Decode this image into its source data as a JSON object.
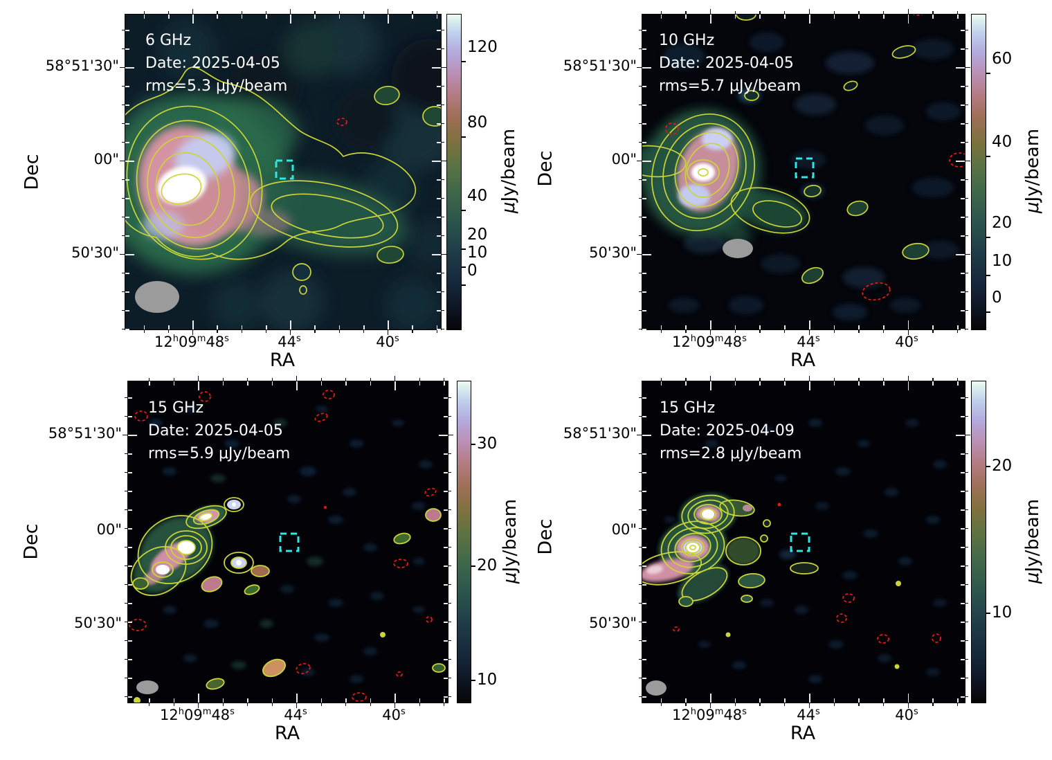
{
  "axes": {
    "x_label": "RA",
    "y_label": "Dec",
    "x_ticks": [
      "12h09m48s",
      "44s",
      "40s"
    ],
    "y_ticks": [
      "58°51'30\"",
      "00\"",
      "50'30\""
    ]
  },
  "colorbar": {
    "mu": "μ",
    "unit": "Jy/beam"
  },
  "panels": [
    {
      "name": "6 GHz 2025-04-05",
      "frequency": "6 GHz",
      "date_line": "Date: 2025-04-05",
      "rms_line": "rms=5.3 μJy/beam",
      "colorbar_ticks": [
        "120",
        "80",
        "40",
        "20",
        "10",
        "0"
      ]
    },
    {
      "name": "10 GHz 2025-04-05",
      "frequency": "10 GHz",
      "date_line": "Date: 2025-04-05",
      "rms_line": "rms=5.7 μJy/beam",
      "colorbar_ticks": [
        "60",
        "40",
        "20",
        "10",
        "0"
      ]
    },
    {
      "name": "15 GHz 2025-04-05",
      "frequency": "15 GHz",
      "date_line": "Date: 2025-04-05",
      "rms_line": "rms=5.9 μJy/beam",
      "colorbar_ticks": [
        "30",
        "20",
        "10"
      ]
    },
    {
      "name": "15 GHz 2025-04-09",
      "frequency": "15 GHz",
      "date_line": "Date: 2025-04-09",
      "rms_line": "rms=2.8 μJy/beam",
      "colorbar_ticks": [
        "20",
        "10"
      ]
    }
  ],
  "chart_data": {
    "type": "heatmap",
    "layout": "2x2 grid of radio continuum sky maps, each with its own vertical colorbar",
    "shared_axes": {
      "xlabel": "RA",
      "ylabel": "Dec",
      "x_tick_labels": [
        "12h09m48s",
        "44s",
        "40s"
      ],
      "y_tick_labels": [
        "58°51'30\"",
        "00\"",
        "50'30\""
      ],
      "x_range_approx": "RA 12h09m50.7s (left) to 12h09m37.9s (right)",
      "y_range_approx": "Dec +58°50'06\" (bottom) to +58°51'47\" (top)"
    },
    "colormap": "cubehelix-like: black → dark blue/teal → green → olive → rose/pink → lavender → white",
    "contours": {
      "positive_contour_color": "yellow-olive solid",
      "negative_contour_color": "red dashed",
      "target_marker": "cyan dashed square near map center (~RA 12h09m44.3s, Dec +58°50'57\")",
      "beam": "grey filled ellipse in lower-left corner of each panel"
    },
    "panels": [
      {
        "position": "top-left",
        "frequency": "6 GHz",
        "observation_date": "2025-04-05",
        "rms_uJy_per_beam": 5.3,
        "colorbar_unit": "μJy/beam",
        "colorbar_tick_values": [
          120,
          80,
          40,
          20,
          10,
          0
        ],
        "colorbar_scale": "nonlinear (asinh-like)",
        "peak_approx_uJy_per_beam": 140,
        "morphology": "bright extended source on E side: white peak, pink halo, green envelope with ~6 nested yellow contours; low-brightness tail extends W; small isolated positive contours NE, E edge and S; one tiny red negative contour; cyan box NW of peak; large grey beam SW corner"
      },
      {
        "position": "top-right",
        "frequency": "10 GHz",
        "observation_date": "2025-04-05",
        "rms_uJy_per_beam": 5.7,
        "colorbar_unit": "μJy/beam",
        "colorbar_tick_values": [
          60,
          40,
          20,
          10,
          0
        ],
        "colorbar_scale": "nonlinear (asinh-like)",
        "peak_approx_uJy_per_beam": 75,
        "morphology": "compact bright source W of center with white core, pink halo, two lavender knots, green tail to SE with second contour island; several small positive contour islands NE/E/SE; red dashed negative contours at NW, E edge and S; cyan box near center; grey beam below source"
      },
      {
        "position": "bottom-left",
        "frequency": "15 GHz",
        "observation_date": "2025-04-05",
        "rms_uJy_per_beam": 5.9,
        "colorbar_unit": "μJy/beam",
        "colorbar_tick_values": [
          30,
          20,
          10
        ],
        "colorbar_scale": "nonlinear (asinh-like)",
        "peak_approx_uJy_per_beam": 35,
        "morphology": "source breaks into a chain of compact knots in NW quadrant (several white-cored knots with concentric yellow contours, S-shaped cluster), plus many faint knots and small positive contours scattered; numerous red dashed negative contours; cyan box at center; small grey beam SW corner"
      },
      {
        "position": "bottom-right",
        "frequency": "15 GHz",
        "observation_date": "2025-04-09",
        "rms_uJy_per_beam": 2.8,
        "colorbar_unit": "μJy/beam",
        "colorbar_tick_values": [
          20,
          10
        ],
        "colorbar_scale": "nonlinear (asinh-like)",
        "peak_approx_uJy_per_beam": 27,
        "morphology": "deeper map: two strong white-cored knots NW with multiple concentric contours, pink tail to W-SW, green arms and several small contour islands toward center; scattered red dashed negative contours SE; cyan box at center; small grey beam SW corner"
      }
    ]
  }
}
